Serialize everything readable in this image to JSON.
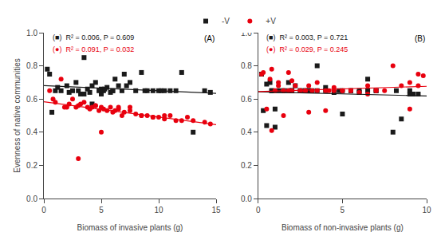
{
  "chart_data": [
    {
      "type": "scatter",
      "title": "(A)",
      "x_label": "Biomass of invasive plants (g)",
      "y_label": "Evenness of native communities",
      "xlim": [
        0,
        15
      ],
      "xticks": [
        0,
        5,
        10,
        15
      ],
      "ylim": [
        0.0,
        1.0
      ],
      "yticks": [
        {
          "value": 0.0,
          "label": "0.0"
        },
        0.2,
        0.4,
        0.6,
        0.8,
        {
          "value": 1.0,
          "label": "1.0"
        }
      ],
      "grid": false,
      "series": [
        {
          "name": "-V",
          "type": "scatter",
          "marker": "square",
          "color": "#1a1a1a",
          "x": [
            0.3,
            0.5,
            0.7,
            1.0,
            1.2,
            1.5,
            2.0,
            2.2,
            2.5,
            2.8,
            3.0,
            3.2,
            3.5,
            3.8,
            4.0,
            4.2,
            4.5,
            4.8,
            5.0,
            5.0,
            5.2,
            5.5,
            5.8,
            6.0,
            6.2,
            6.5,
            6.8,
            7.0,
            7.5,
            8.0,
            8.5,
            9.0,
            9.5,
            10.0,
            10.5,
            11.0,
            12.0,
            13.0,
            14.0,
            14.5,
            3.5,
            5.3,
            7.2,
            8.8,
            10.2,
            11.5,
            6.0,
            4.2
          ],
          "values": [
            0.78,
            0.75,
            0.52,
            0.65,
            0.67,
            0.65,
            0.68,
            0.64,
            0.65,
            0.7,
            0.65,
            0.63,
            0.85,
            0.66,
            0.64,
            0.68,
            0.7,
            0.65,
            0.66,
            0.63,
            0.65,
            0.67,
            0.64,
            0.65,
            0.72,
            0.68,
            0.65,
            0.75,
            0.7,
            0.65,
            0.76,
            0.65,
            0.65,
            0.65,
            0.65,
            0.65,
            0.76,
            0.4,
            0.65,
            0.64,
            0.63,
            0.66,
            0.68,
            0.65,
            0.65,
            0.65,
            0.65,
            0.57
          ]
        },
        {
          "name": "+V",
          "type": "scatter",
          "marker": "circle",
          "color": "#e8000e",
          "x": [
            0.5,
            0.8,
            1.0,
            1.5,
            2.0,
            2.2,
            2.5,
            2.8,
            3.0,
            3.2,
            3.5,
            3.8,
            4.0,
            4.2,
            4.5,
            4.8,
            5.0,
            5.2,
            5.5,
            5.8,
            6.0,
            6.2,
            6.5,
            6.8,
            7.0,
            7.5,
            8.0,
            8.5,
            9.0,
            9.5,
            10.0,
            10.5,
            11.0,
            12.0,
            13.0,
            14.0,
            14.5,
            3.0,
            5.0,
            7.5,
            9.5,
            11.5,
            1.8,
            4.5,
            6.5,
            8.5,
            10.5,
            12.5
          ],
          "values": [
            0.65,
            0.6,
            0.58,
            0.72,
            0.55,
            0.57,
            0.6,
            0.55,
            0.56,
            0.57,
            0.58,
            0.55,
            0.54,
            0.55,
            0.56,
            0.53,
            0.55,
            0.54,
            0.53,
            0.55,
            0.52,
            0.53,
            0.54,
            0.5,
            0.52,
            0.53,
            0.51,
            0.5,
            0.5,
            0.49,
            0.49,
            0.48,
            0.5,
            0.47,
            0.47,
            0.46,
            0.45,
            0.24,
            0.4,
            0.55,
            0.49,
            0.47,
            0.55,
            0.56,
            0.55,
            0.5,
            0.5,
            0.49
          ]
        },
        {
          "type": "line",
          "color": "#1a1a1a",
          "x": [
            0,
            15
          ],
          "values": [
            0.6813,
            0.6344
          ]
        },
        {
          "type": "line",
          "color": "#e8000e",
          "x": [
            0,
            15
          ],
          "values": [
            0.584,
            0.4449
          ]
        }
      ],
      "annotations": [
        {
          "text": "(■)  R² = 0.006, P = 0.609",
          "color": "#1a1a1a"
        },
        {
          "text": "(●)  R² = 0.091, P = 0.032",
          "color": "#e8000e"
        }
      ]
    },
    {
      "type": "scatter",
      "title": "(B)",
      "x_label": "Biomass of non-invasive plants (g)",
      "xlim": [
        0,
        10
      ],
      "xticks": [
        0,
        5,
        10
      ],
      "ylim": [
        0.0,
        1.0
      ],
      "yticks": [
        {
          "value": 0.0,
          "label": "0.0"
        },
        0.2,
        0.4,
        0.6,
        0.8,
        {
          "value": 1.0,
          "label": "1.0"
        }
      ],
      "grid": false,
      "series": [
        {
          "name": "-V",
          "type": "scatter",
          "marker": "square",
          "color": "#1a1a1a",
          "x": [
            0.2,
            0.3,
            0.5,
            0.7,
            0.8,
            1.0,
            1.2,
            1.5,
            1.8,
            2.0,
            2.2,
            2.5,
            2.8,
            3.0,
            3.5,
            4.0,
            4.5,
            5.0,
            5.5,
            6.0,
            6.5,
            7.0,
            8.0,
            9.0,
            9.5,
            0.5,
            1.0,
            1.5,
            2.0,
            2.5,
            3.0,
            3.5,
            4.0,
            5.0,
            6.0,
            7.0,
            8.5,
            9.2,
            1.8,
            3.2,
            4.8,
            6.5,
            8.2,
            2.8,
            0.8,
            2.0,
            5.5,
            9.0
          ],
          "values": [
            0.75,
            0.53,
            0.69,
            0.7,
            0.65,
            0.54,
            0.65,
            0.65,
            0.7,
            0.65,
            0.68,
            0.65,
            0.65,
            0.65,
            0.65,
            0.65,
            0.64,
            0.51,
            0.65,
            0.64,
            0.72,
            0.65,
            0.4,
            0.63,
            0.63,
            0.44,
            0.43,
            0.65,
            0.65,
            0.65,
            0.65,
            0.8,
            0.67,
            0.65,
            0.65,
            0.65,
            0.48,
            0.63,
            0.65,
            0.65,
            0.65,
            0.65,
            0.65,
            0.65,
            0.65,
            0.65,
            0.65,
            0.65
          ]
        },
        {
          "name": "+V",
          "type": "scatter",
          "marker": "circle",
          "color": "#e8000e",
          "x": [
            0.2,
            0.3,
            0.5,
            0.7,
            0.8,
            1.0,
            1.2,
            1.5,
            1.8,
            2.0,
            2.2,
            2.5,
            2.8,
            3.0,
            3.2,
            3.5,
            4.0,
            4.2,
            4.5,
            5.0,
            5.5,
            6.0,
            6.5,
            7.0,
            8.0,
            9.0,
            9.5,
            1.0,
            1.5,
            2.0,
            2.5,
            3.0,
            4.0,
            5.0,
            6.5,
            8.5,
            9.8,
            0.8,
            1.8,
            2.8,
            4.5,
            7.0,
            9.5,
            1.2,
            3.5,
            5.5,
            7.5,
            9.0
          ],
          "values": [
            0.75,
            0.76,
            0.54,
            0.72,
            0.78,
            0.65,
            0.68,
            0.65,
            0.76,
            0.71,
            0.68,
            0.65,
            0.65,
            0.68,
            0.65,
            0.7,
            0.53,
            0.65,
            0.67,
            0.65,
            0.65,
            0.64,
            0.68,
            0.65,
            0.8,
            0.54,
            0.75,
            0.65,
            0.5,
            0.65,
            0.65,
            0.52,
            0.65,
            0.65,
            0.63,
            0.68,
            0.74,
            0.41,
            0.65,
            0.65,
            0.65,
            0.65,
            0.68,
            0.7,
            0.65,
            0.65,
            0.65,
            0.7
          ]
        },
        {
          "type": "line",
          "color": "#1a1a1a",
          "x": [
            0,
            10
          ],
          "values": [
            0.6432,
            0.6185
          ]
        },
        {
          "type": "line",
          "color": "#e8000e",
          "x": [
            0,
            10
          ],
          "values": [
            0.6453,
            0.6767
          ]
        }
      ],
      "annotations": [
        {
          "text": "(■)  R² = 0.003, P = 0.721",
          "color": "#1a1a1a"
        },
        {
          "text": "(●)  R² = 0.029, P = 0.245",
          "color": "#e8000e"
        }
      ]
    }
  ]
}
